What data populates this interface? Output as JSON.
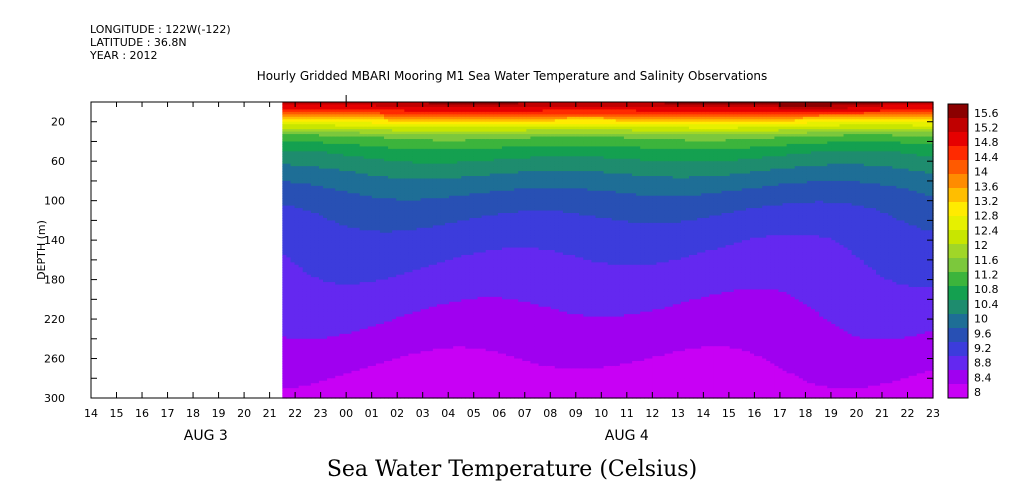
{
  "header": {
    "longitude": "LONGITUDE : 122W(-122)",
    "latitude": "LATITUDE : 36.8N",
    "year": "YEAR : 2012"
  },
  "chart_data": {
    "type": "heatmap",
    "title": "Hourly Gridded MBARI Mooring M1 Sea Water Temperature and Salinity Observations",
    "xlabel": "",
    "ylabel": "DEPTH (m)",
    "caption": "Sea Water Temperature (Celsius)",
    "x_ticks": [
      "14",
      "15",
      "16",
      "17",
      "18",
      "19",
      "20",
      "21",
      "22",
      "23",
      "00",
      "01",
      "02",
      "03",
      "04",
      "05",
      "06",
      "07",
      "08",
      "09",
      "10",
      "11",
      "12",
      "13",
      "14",
      "15",
      "16",
      "17",
      "18",
      "19",
      "20",
      "21",
      "22",
      "23"
    ],
    "x_day_labels": [
      {
        "label": "AUG  3",
        "center_hour_index": 4.5
      },
      {
        "label": "AUG  4",
        "center_hour_index": 21
      }
    ],
    "y_ticks": [
      20,
      60,
      100,
      140,
      180,
      220,
      260,
      300
    ],
    "ylim": [
      300,
      0
    ],
    "data_start_hour_index": 8,
    "colorbar": {
      "levels": [
        "15.6",
        "15.2",
        "14.8",
        "14.4",
        "14",
        "13.6",
        "13.2",
        "12.8",
        "12.4",
        "12",
        "11.6",
        "11.2",
        "10.8",
        "10.4",
        "10",
        "9.6",
        "9.2",
        "8.8",
        "8.4",
        "8"
      ],
      "colors": [
        "#8b0000",
        "#c00000",
        "#e60000",
        "#ff2a00",
        "#ff5a00",
        "#ff8c00",
        "#ffbe00",
        "#ffeb00",
        "#e6f000",
        "#c8e600",
        "#a0d628",
        "#7cc83c",
        "#3cb43c",
        "#14a050",
        "#1e8c6e",
        "#1e6e96",
        "#2850b4",
        "#3c3cdc",
        "#6428f0",
        "#a000f0",
        "#c800f5"
      ],
      "min": 8,
      "max": 15.6
    },
    "contour_profile": {
      "depths": [
        0,
        10,
        20,
        35,
        50,
        70,
        90,
        110,
        140,
        170,
        200,
        230,
        260,
        280,
        300
      ],
      "temps": [
        15.3,
        14.4,
        12.9,
        11.3,
        10.7,
        10.2,
        9.8,
        9.5,
        9.2,
        9.0,
        8.8,
        8.6,
        8.4,
        8.25,
        8.1
      ]
    }
  }
}
